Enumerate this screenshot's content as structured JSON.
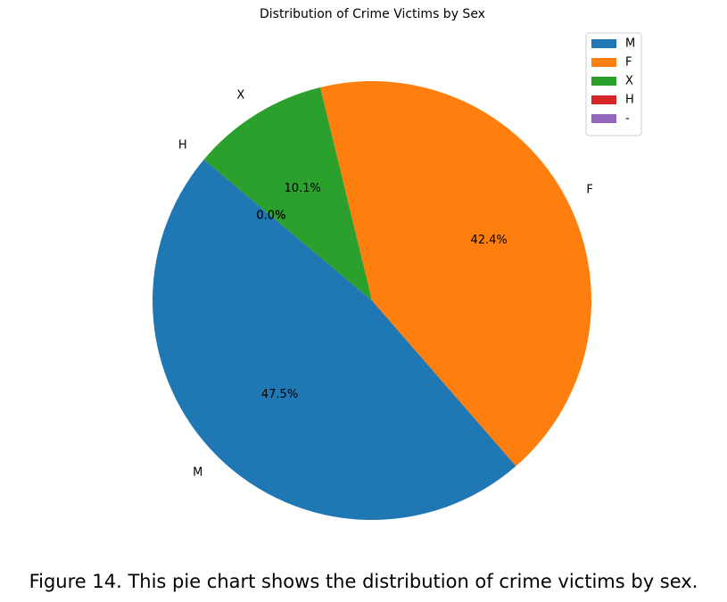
{
  "chart_data": {
    "type": "pie",
    "title": "Distribution of Crime Victims by Sex",
    "categories": [
      "M",
      "F",
      "X",
      "H",
      "-"
    ],
    "values": [
      47.5,
      42.4,
      10.1,
      0.0,
      0.0
    ],
    "slice_labels": [
      "M",
      "F",
      "X",
      "H",
      ""
    ],
    "pct_labels": [
      "47.5%",
      "42.4%",
      "10.1%",
      "0.0%",
      "0.0%"
    ],
    "colors": [
      "#1f77b4",
      "#ff7f0e",
      "#2ca02c",
      "#d62728",
      "#9467bd"
    ],
    "start_angle_deg": 140,
    "direction": "counterclockwise",
    "legend": {
      "placement": "top-right",
      "entries": [
        "M",
        "F",
        "X",
        "H",
        "-"
      ]
    }
  },
  "caption": "Figure 14. This pie chart shows the distribution of crime victims by sex."
}
